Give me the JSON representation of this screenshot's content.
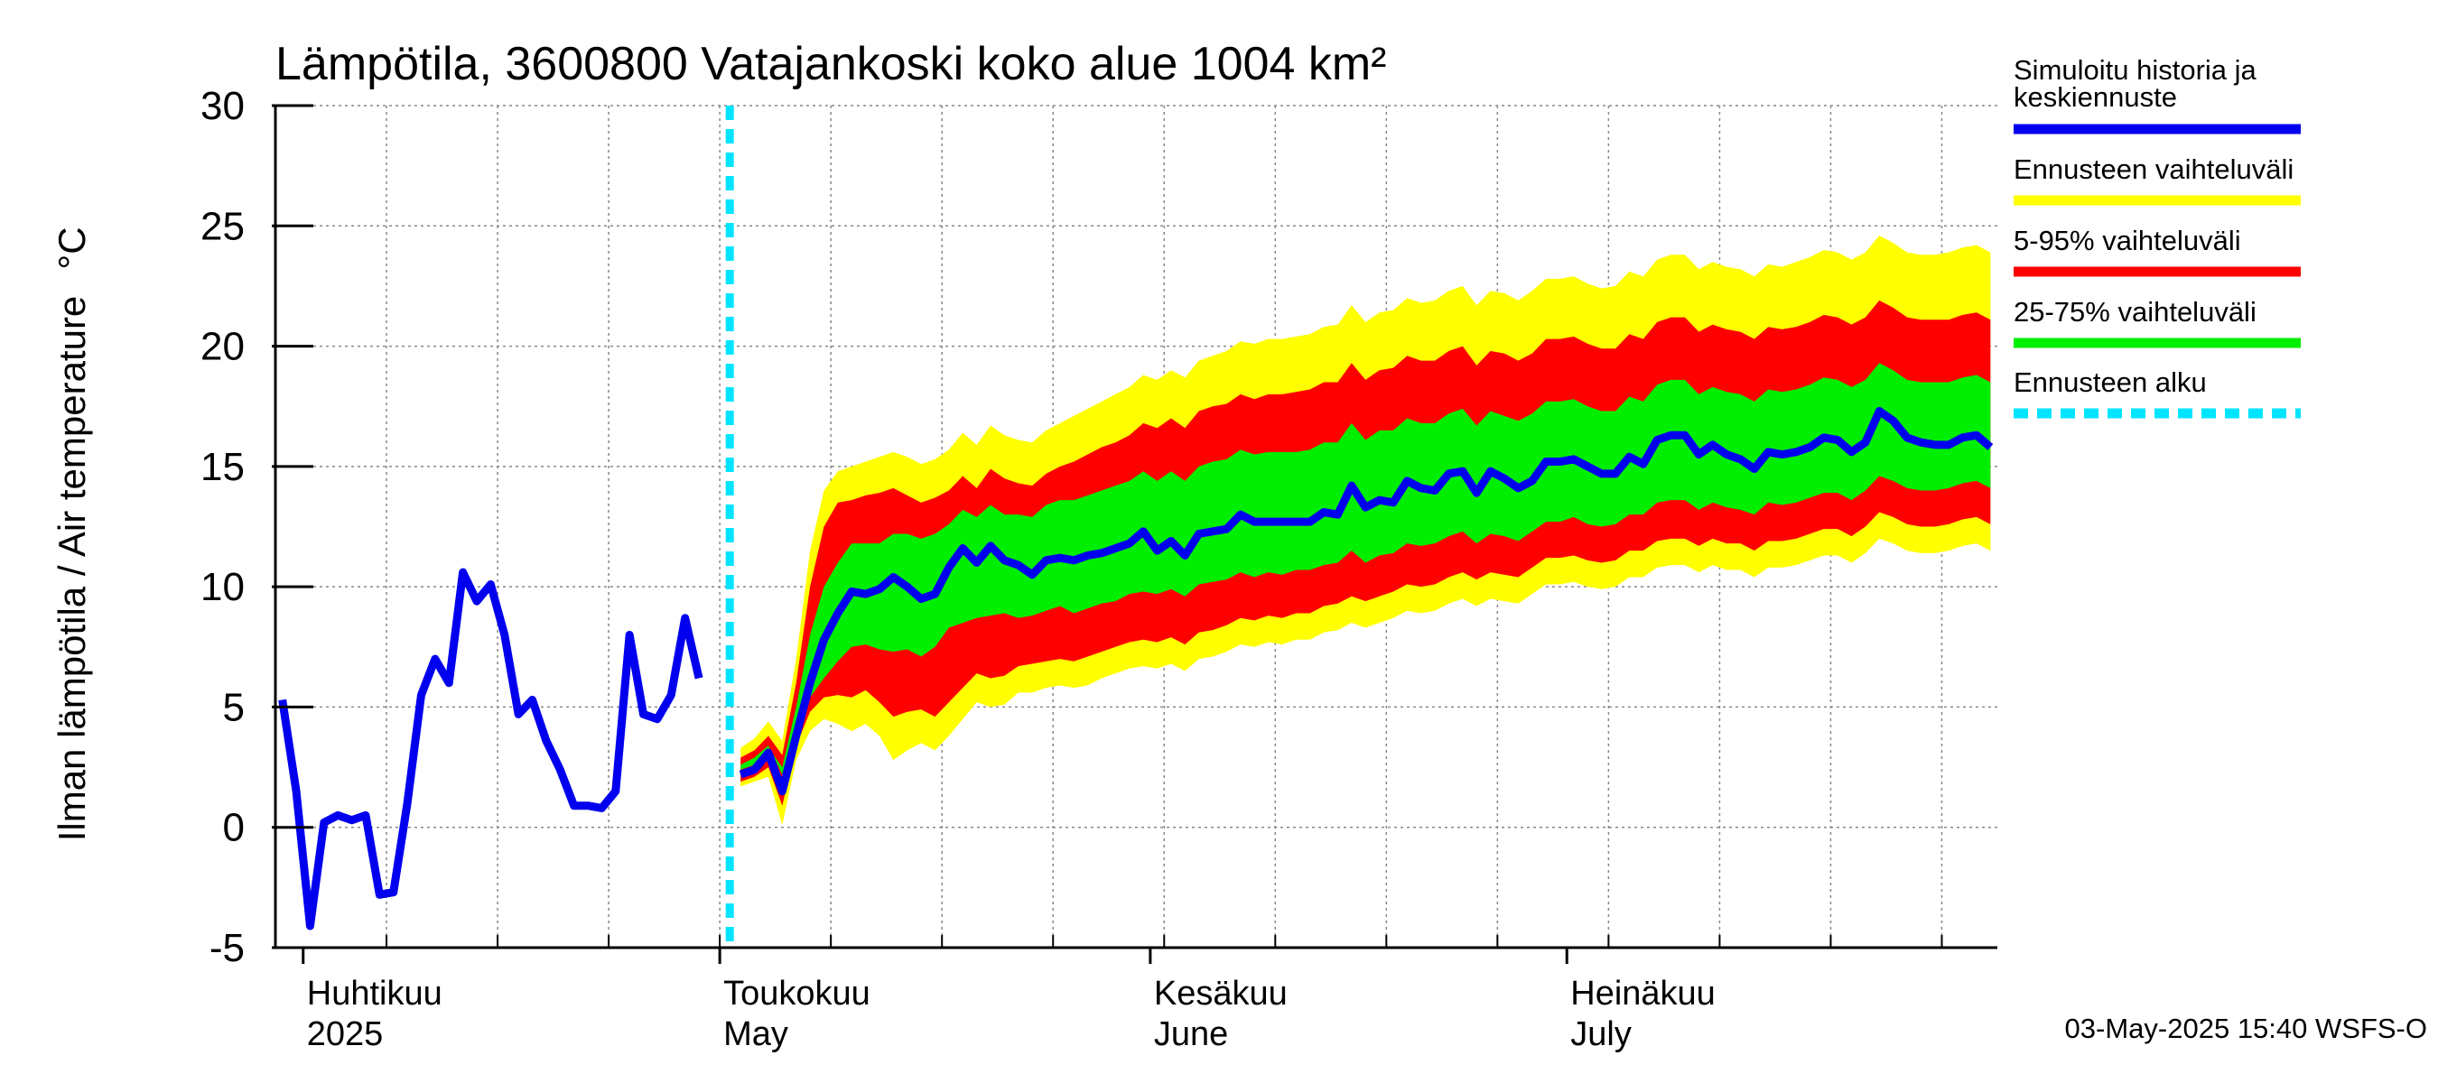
{
  "chart_data": {
    "type": "area",
    "title": "Lämpötila, 3600800 Vatajankoski koko alue 1004 km²",
    "ylabel_fi": "Ilman lämpötila / Air temperature",
    "ylabel_unit": "°C",
    "ylim": [
      -5,
      30
    ],
    "yticks": [
      "-5",
      "0",
      "5",
      "10",
      "15",
      "20",
      "25",
      "30"
    ],
    "ytick_values": [
      -5,
      0,
      5,
      10,
      15,
      20,
      25,
      30
    ],
    "grid": true,
    "x_start": "2025-03-30",
    "x_end": "2025-07-31",
    "forecast_start": "2025-05-02",
    "month_labels": [
      {
        "fi": "Huhtikuu",
        "en": "2025",
        "date": "2025-04-01"
      },
      {
        "fi": "Toukokuu",
        "en": "May",
        "date": "2025-05-01"
      },
      {
        "fi": "Kesäkuu",
        "en": "June",
        "date": "2025-06-01"
      },
      {
        "fi": "Heinäkuu",
        "en": "July",
        "date": "2025-07-01"
      }
    ],
    "history": {
      "name": "Simuloitu historia ja keskiennuste",
      "color": "#0000ee",
      "points": [
        [
          "2025-03-30",
          5.3
        ],
        [
          "2025-03-31",
          1.5
        ],
        [
          "2025-04-01",
          -4.1
        ],
        [
          "2025-04-02",
          0.2
        ],
        [
          "2025-04-03",
          0.5
        ],
        [
          "2025-04-04",
          0.3
        ],
        [
          "2025-04-05",
          0.5
        ],
        [
          "2025-04-06",
          -2.8
        ],
        [
          "2025-04-07",
          -2.7
        ],
        [
          "2025-04-08",
          1.0
        ],
        [
          "2025-04-09",
          5.5
        ],
        [
          "2025-04-10",
          7.0
        ],
        [
          "2025-04-11",
          6.0
        ],
        [
          "2025-04-12",
          10.6
        ],
        [
          "2025-04-13",
          9.4
        ],
        [
          "2025-04-14",
          10.1
        ],
        [
          "2025-04-15",
          8.0
        ],
        [
          "2025-04-16",
          4.7
        ],
        [
          "2025-04-17",
          5.3
        ],
        [
          "2025-04-18",
          3.6
        ],
        [
          "2025-04-19",
          2.4
        ],
        [
          "2025-04-20",
          0.9
        ],
        [
          "2025-04-21",
          0.9
        ],
        [
          "2025-04-22",
          0.8
        ],
        [
          "2025-04-23",
          1.5
        ],
        [
          "2025-04-24",
          8.0
        ],
        [
          "2025-04-25",
          4.7
        ],
        [
          "2025-04-26",
          4.5
        ],
        [
          "2025-04-27",
          5.5
        ],
        [
          "2025-04-28",
          8.7
        ],
        [
          "2025-04-29",
          6.2
        ]
      ]
    },
    "forecast": {
      "dates": [
        "2025-05-02",
        "2025-05-03",
        "2025-05-04",
        "2025-05-05",
        "2025-05-06",
        "2025-05-07",
        "2025-05-08",
        "2025-05-09",
        "2025-05-10",
        "2025-05-11",
        "2025-05-12",
        "2025-05-13",
        "2025-05-14",
        "2025-05-15",
        "2025-05-16",
        "2025-05-17",
        "2025-05-18",
        "2025-05-19",
        "2025-05-20",
        "2025-05-21",
        "2025-05-22",
        "2025-05-23",
        "2025-05-24",
        "2025-05-25",
        "2025-05-26",
        "2025-05-27",
        "2025-05-28",
        "2025-05-29",
        "2025-05-30",
        "2025-05-31",
        "2025-06-01",
        "2025-06-02",
        "2025-06-03",
        "2025-06-04",
        "2025-06-05",
        "2025-06-06",
        "2025-06-07",
        "2025-06-08",
        "2025-06-09",
        "2025-06-10",
        "2025-06-11",
        "2025-06-12",
        "2025-06-13",
        "2025-06-14",
        "2025-06-15",
        "2025-06-16",
        "2025-06-17",
        "2025-06-18",
        "2025-06-19",
        "2025-06-20",
        "2025-06-21",
        "2025-06-22",
        "2025-06-23",
        "2025-06-24",
        "2025-06-25",
        "2025-06-26",
        "2025-06-27",
        "2025-06-28",
        "2025-06-29",
        "2025-06-30",
        "2025-07-01",
        "2025-07-02",
        "2025-07-03",
        "2025-07-04",
        "2025-07-05",
        "2025-07-06",
        "2025-07-07",
        "2025-07-08",
        "2025-07-09",
        "2025-07-10",
        "2025-07-11",
        "2025-07-12",
        "2025-07-13",
        "2025-07-14",
        "2025-07-15",
        "2025-07-16",
        "2025-07-17",
        "2025-07-18",
        "2025-07-19",
        "2025-07-20",
        "2025-07-21",
        "2025-07-22",
        "2025-07-23",
        "2025-07-24",
        "2025-07-25",
        "2025-07-26",
        "2025-07-27",
        "2025-07-28",
        "2025-07-29",
        "2025-07-30",
        "2025-07-31"
      ],
      "median": [
        2.2,
        2.4,
        3.1,
        1.5,
        3.8,
        6.0,
        7.8,
        8.9,
        9.8,
        9.7,
        9.9,
        10.4,
        10.0,
        9.5,
        9.7,
        10.8,
        11.6,
        11.0,
        11.7,
        11.1,
        10.9,
        10.5,
        11.1,
        11.2,
        11.1,
        11.3,
        11.4,
        11.6,
        11.8,
        12.3,
        11.5,
        11.9,
        11.3,
        12.2,
        12.3,
        12.4,
        13.0,
        12.7,
        12.7,
        12.7,
        12.7,
        12.7,
        13.1,
        13.0,
        14.2,
        13.3,
        13.6,
        13.5,
        14.4,
        14.1,
        14.0,
        14.7,
        14.8,
        13.9,
        14.8,
        14.5,
        14.1,
        14.4,
        15.2,
        15.2,
        15.3,
        15.0,
        14.7,
        14.7,
        15.4,
        15.1,
        16.1,
        16.3,
        16.3,
        15.5,
        15.9,
        15.5,
        15.3,
        14.9,
        15.6,
        15.5,
        15.6,
        15.8,
        16.2,
        16.1,
        15.6,
        16.0,
        17.3,
        16.9,
        16.2,
        16.0,
        15.9,
        15.9,
        16.2,
        16.3,
        15.8
      ],
      "p25": [
        2.6,
        2.9,
        3.4,
        2.2,
        4.4,
        5.4,
        6.2,
        6.9,
        7.5,
        7.6,
        7.4,
        7.3,
        7.4,
        7.1,
        7.5,
        8.3,
        8.5,
        8.7,
        8.8,
        8.9,
        8.7,
        8.8,
        9.0,
        9.2,
        8.9,
        9.1,
        9.3,
        9.4,
        9.7,
        9.8,
        9.7,
        9.9,
        9.6,
        10.1,
        10.2,
        10.3,
        10.6,
        10.4,
        10.6,
        10.5,
        10.7,
        10.7,
        10.9,
        11.0,
        11.5,
        11.0,
        11.3,
        11.4,
        11.8,
        11.7,
        11.8,
        12.1,
        12.3,
        11.8,
        12.2,
        12.1,
        11.9,
        12.3,
        12.7,
        12.7,
        12.9,
        12.6,
        12.5,
        12.6,
        13.0,
        13.0,
        13.5,
        13.6,
        13.6,
        13.2,
        13.5,
        13.3,
        13.2,
        13.0,
        13.5,
        13.4,
        13.5,
        13.7,
        13.9,
        13.9,
        13.6,
        14.0,
        14.6,
        14.4,
        14.1,
        14.0,
        14.0,
        14.1,
        14.3,
        14.4,
        14.1
      ],
      "p75": [
        2.4,
        2.6,
        3.3,
        2.5,
        5.0,
        8.0,
        10.0,
        11.0,
        11.8,
        11.8,
        11.8,
        12.2,
        12.2,
        12.0,
        12.2,
        12.6,
        13.2,
        12.9,
        13.4,
        13.0,
        13.0,
        12.9,
        13.4,
        13.6,
        13.6,
        13.8,
        14.0,
        14.2,
        14.4,
        14.8,
        14.4,
        14.8,
        14.4,
        15.0,
        15.2,
        15.3,
        15.7,
        15.5,
        15.6,
        15.6,
        15.6,
        15.7,
        16.0,
        16.0,
        16.8,
        16.1,
        16.5,
        16.5,
        17.0,
        16.8,
        16.8,
        17.2,
        17.4,
        16.7,
        17.3,
        17.1,
        16.9,
        17.2,
        17.7,
        17.7,
        17.8,
        17.5,
        17.3,
        17.3,
        17.9,
        17.7,
        18.4,
        18.6,
        18.6,
        18.0,
        18.3,
        18.1,
        18.0,
        17.7,
        18.2,
        18.1,
        18.2,
        18.4,
        18.7,
        18.6,
        18.3,
        18.6,
        19.3,
        19.0,
        18.6,
        18.5,
        18.5,
        18.5,
        18.7,
        18.8,
        18.5
      ],
      "p05": [
        1.9,
        2.1,
        2.5,
        0.9,
        3.4,
        4.8,
        5.4,
        5.5,
        5.4,
        5.7,
        5.2,
        4.6,
        4.8,
        4.9,
        4.6,
        5.2,
        5.8,
        6.4,
        6.2,
        6.3,
        6.7,
        6.8,
        6.9,
        7.0,
        6.9,
        7.1,
        7.3,
        7.5,
        7.7,
        7.8,
        7.7,
        7.9,
        7.6,
        8.1,
        8.2,
        8.4,
        8.7,
        8.6,
        8.8,
        8.7,
        8.9,
        8.9,
        9.2,
        9.3,
        9.6,
        9.4,
        9.6,
        9.8,
        10.1,
        10.0,
        10.1,
        10.4,
        10.6,
        10.3,
        10.6,
        10.5,
        10.4,
        10.8,
        11.2,
        11.2,
        11.3,
        11.1,
        11.0,
        11.1,
        11.5,
        11.5,
        11.9,
        12.0,
        12.0,
        11.7,
        12.0,
        11.8,
        11.8,
        11.5,
        11.9,
        11.9,
        12.0,
        12.2,
        12.4,
        12.4,
        12.1,
        12.5,
        13.1,
        12.9,
        12.6,
        12.5,
        12.5,
        12.6,
        12.8,
        12.9,
        12.6
      ],
      "p95": [
        2.9,
        3.2,
        3.8,
        3.0,
        6.0,
        10.0,
        12.5,
        13.5,
        13.6,
        13.8,
        13.9,
        14.1,
        13.8,
        13.5,
        13.7,
        14.0,
        14.6,
        14.1,
        14.9,
        14.5,
        14.3,
        14.2,
        14.7,
        15.0,
        15.2,
        15.5,
        15.8,
        16.0,
        16.3,
        16.8,
        16.6,
        17.0,
        16.6,
        17.3,
        17.5,
        17.6,
        18.0,
        17.8,
        18.0,
        18.0,
        18.1,
        18.2,
        18.5,
        18.5,
        19.3,
        18.6,
        19.0,
        19.1,
        19.6,
        19.4,
        19.4,
        19.8,
        20.0,
        19.2,
        19.8,
        19.7,
        19.4,
        19.7,
        20.3,
        20.3,
        20.4,
        20.1,
        19.9,
        19.9,
        20.5,
        20.3,
        21.0,
        21.2,
        21.2,
        20.6,
        20.9,
        20.7,
        20.6,
        20.3,
        20.8,
        20.7,
        20.8,
        21.0,
        21.3,
        21.2,
        20.9,
        21.2,
        21.9,
        21.6,
        21.2,
        21.1,
        21.1,
        21.1,
        21.3,
        21.4,
        21.1
      ],
      "ens_min": [
        1.7,
        1.9,
        2.1,
        0.1,
        2.8,
        4.0,
        4.5,
        4.3,
        4.0,
        4.3,
        3.8,
        2.8,
        3.2,
        3.5,
        3.2,
        3.8,
        4.5,
        5.2,
        5.0,
        5.1,
        5.6,
        5.6,
        5.8,
        5.9,
        5.8,
        5.9,
        6.2,
        6.4,
        6.6,
        6.7,
        6.6,
        6.8,
        6.5,
        7.0,
        7.1,
        7.3,
        7.6,
        7.5,
        7.7,
        7.6,
        7.8,
        7.8,
        8.1,
        8.2,
        8.5,
        8.3,
        8.5,
        8.7,
        9.0,
        8.9,
        9.0,
        9.3,
        9.5,
        9.2,
        9.5,
        9.4,
        9.3,
        9.7,
        10.1,
        10.1,
        10.2,
        10.0,
        9.9,
        10.0,
        10.4,
        10.4,
        10.8,
        10.9,
        10.9,
        10.6,
        10.9,
        10.7,
        10.7,
        10.4,
        10.8,
        10.8,
        10.9,
        11.1,
        11.3,
        11.3,
        11.0,
        11.4,
        12.0,
        11.8,
        11.5,
        11.4,
        11.4,
        11.5,
        11.7,
        11.8,
        11.5
      ],
      "ens_max": [
        3.3,
        3.7,
        4.4,
        3.6,
        7.0,
        11.5,
        14.0,
        14.8,
        15.0,
        15.2,
        15.4,
        15.6,
        15.4,
        15.1,
        15.3,
        15.7,
        16.4,
        15.9,
        16.7,
        16.3,
        16.1,
        16.0,
        16.5,
        16.8,
        17.1,
        17.4,
        17.7,
        18.0,
        18.3,
        18.8,
        18.6,
        19.0,
        18.7,
        19.4,
        19.6,
        19.8,
        20.2,
        20.1,
        20.3,
        20.3,
        20.4,
        20.5,
        20.8,
        20.9,
        21.7,
        21.0,
        21.4,
        21.5,
        22.0,
        21.8,
        21.9,
        22.3,
        22.5,
        21.7,
        22.3,
        22.2,
        21.9,
        22.3,
        22.8,
        22.8,
        22.9,
        22.6,
        22.4,
        22.5,
        23.1,
        22.9,
        23.6,
        23.8,
        23.8,
        23.2,
        23.5,
        23.3,
        23.2,
        22.9,
        23.4,
        23.3,
        23.5,
        23.7,
        24.0,
        23.9,
        23.6,
        23.9,
        24.6,
        24.3,
        23.9,
        23.8,
        23.8,
        23.9,
        24.1,
        24.2,
        23.9
      ]
    },
    "legend": [
      {
        "label_line1": "Simuloitu historia ja",
        "label_line2": "keskiennuste",
        "color": "#0000ee",
        "style": "solid"
      },
      {
        "label_line1": "Ennusteen vaihteluväli",
        "label_line2": "",
        "color": "#ffff00",
        "style": "solid"
      },
      {
        "label_line1": "5-95% vaihteluväli",
        "label_line2": "",
        "color": "#ff0000",
        "style": "solid"
      },
      {
        "label_line1": "25-75% vaihteluväli",
        "label_line2": "",
        "color": "#00ee00",
        "style": "solid"
      },
      {
        "label_line1": "Ennusteen alku",
        "label_line2": "",
        "color": "#00e5ff",
        "style": "dashed"
      }
    ],
    "colors": {
      "ensemble": "#ffff00",
      "p05_95": "#ff0000",
      "p25_75": "#00ee00",
      "median": "#0000ee",
      "forecast_start": "#00e5ff"
    }
  },
  "timestamp": "03-May-2025 15:40 WSFS-O"
}
